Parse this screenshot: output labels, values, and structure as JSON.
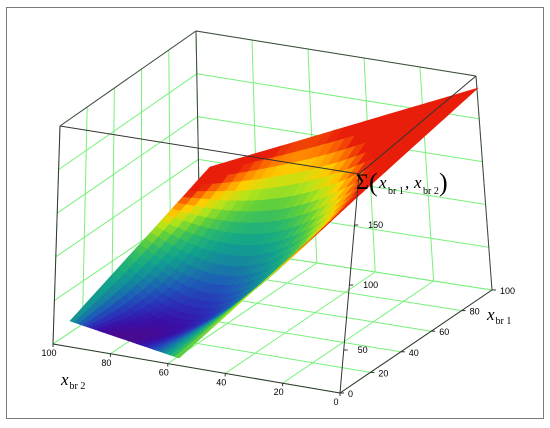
{
  "chart_data": {
    "type": "surface",
    "function": "sum of squared deviations over (x_br1, x_br2), quadratic bowl",
    "x1_axis": {
      "label": "x",
      "label_sub": "br 1",
      "range": [
        0,
        100
      ],
      "ticks": [
        "0",
        "20",
        "40",
        "60",
        "80",
        "100"
      ]
    },
    "x2_axis": {
      "label": "x",
      "label_sub": "br 2",
      "range": [
        0,
        100
      ],
      "ticks": [
        "0",
        "20",
        "40",
        "60",
        "80",
        "100"
      ]
    },
    "z_axis": {
      "label_sigma": "Σ",
      "label_open": "(",
      "label_close": ")",
      "label_x": "x",
      "label_comma": ",",
      "label_sub1": "br 1",
      "label_sub2": "br 2",
      "ticks": [
        "50",
        "100",
        "150"
      ]
    },
    "surface": {
      "minimum_at": {
        "x_br1": 0,
        "x_br2": 55
      },
      "corner_values": [
        {
          "x_br1": 0,
          "x_br2": 0,
          "z": 150
        },
        {
          "x_br1": 0,
          "x_br2": 100,
          "z": 75
        },
        {
          "x_br1": 100,
          "x_br2": 100,
          "z": 200
        },
        {
          "x_br1": 100,
          "x_br2": 0,
          "z": 270
        }
      ]
    },
    "grid": true,
    "colormap": [
      "#4b0a8c",
      "#3a0fa8",
      "#2a32b8",
      "#1e5bb8",
      "#15859f",
      "#12a38c",
      "#2ab86e",
      "#5fcf3c",
      "#b3e51a",
      "#ffd000",
      "#ff7a00",
      "#e81e0a"
    ]
  }
}
